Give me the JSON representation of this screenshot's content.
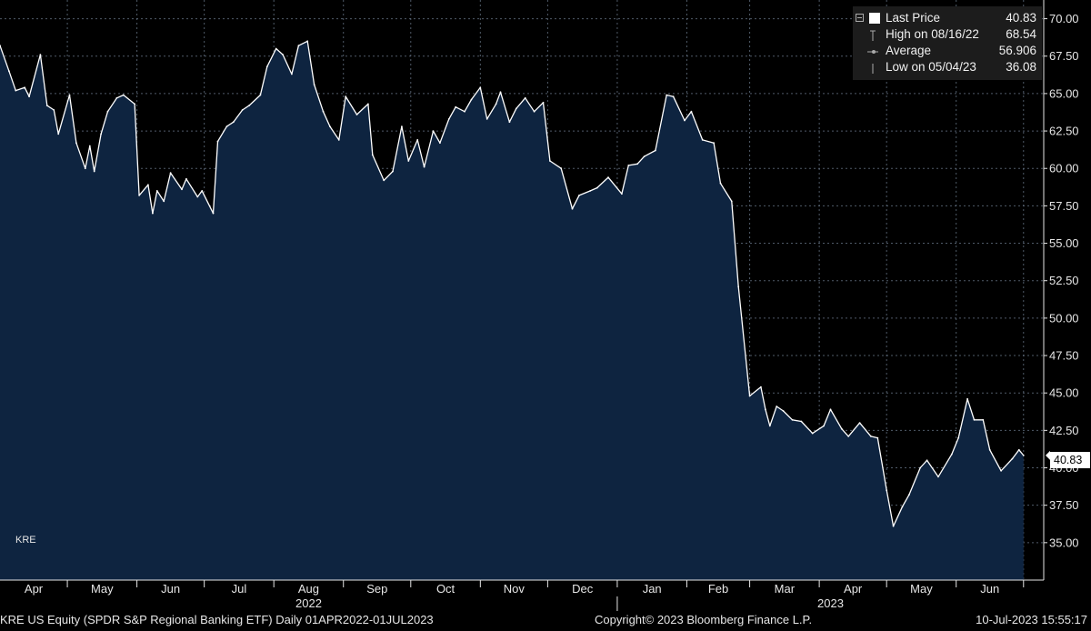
{
  "legend": {
    "rows": [
      {
        "label": "Last Price",
        "value": "40.83"
      },
      {
        "label": "High on 08/16/22",
        "value": "68.54"
      },
      {
        "label": "Average",
        "value": "56.906"
      },
      {
        "label": "Low on 05/04/23",
        "value": "36.08"
      }
    ]
  },
  "series_tag": "KRE",
  "last_badge": "40.83",
  "footer": {
    "left": "KRE US Equity (SPDR S&P Regional Banking ETF)  Daily 01APR2022-01JUL2023",
    "center": "Copyright© 2023 Bloomberg Finance L.P.",
    "right": "10-Jul-2023 15:55:17"
  },
  "colors": {
    "background": "#000000",
    "area_fill": "#0e2440",
    "line": "#ffffff",
    "grid": "#6b7a8c",
    "text": "#e6e6e6"
  },
  "chart_data": {
    "type": "area",
    "title": "",
    "xlabel": "",
    "ylabel": "",
    "ylim": [
      32.5,
      71.25
    ],
    "yticks": [
      "35.00",
      "37.50",
      "40.00",
      "42.50",
      "45.00",
      "47.50",
      "50.00",
      "52.50",
      "55.00",
      "57.50",
      "60.00",
      "62.50",
      "65.00",
      "67.50",
      "70.00"
    ],
    "month_labels": [
      "Apr",
      "May",
      "Jun",
      "Jul",
      "Aug",
      "Sep",
      "Oct",
      "Nov",
      "Dec",
      "Jan",
      "Feb",
      "Mar",
      "Apr",
      "May",
      "Jun"
    ],
    "year_labels": [
      "2022",
      "2023"
    ],
    "grid": true,
    "legend_position": "top-right",
    "series": [
      {
        "name": "Last Price",
        "x": [
          "2022-04-01",
          "2022-04-05",
          "2022-04-08",
          "2022-04-12",
          "2022-04-14",
          "2022-04-19",
          "2022-04-22",
          "2022-04-25",
          "2022-04-27",
          "2022-05-02",
          "2022-05-05",
          "2022-05-09",
          "2022-05-11",
          "2022-05-13",
          "2022-05-16",
          "2022-05-19",
          "2022-05-23",
          "2022-05-26",
          "2022-05-31",
          "2022-06-02",
          "2022-06-06",
          "2022-06-08",
          "2022-06-10",
          "2022-06-13",
          "2022-06-16",
          "2022-06-21",
          "2022-06-23",
          "2022-06-28",
          "2022-06-30",
          "2022-07-05",
          "2022-07-07",
          "2022-07-11",
          "2022-07-14",
          "2022-07-18",
          "2022-07-21",
          "2022-07-26",
          "2022-07-29",
          "2022-08-02",
          "2022-08-05",
          "2022-08-09",
          "2022-08-12",
          "2022-08-16",
          "2022-08-19",
          "2022-08-23",
          "2022-08-26",
          "2022-08-30",
          "2022-09-02",
          "2022-09-07",
          "2022-09-12",
          "2022-09-14",
          "2022-09-19",
          "2022-09-23",
          "2022-09-27",
          "2022-09-30",
          "2022-10-04",
          "2022-10-07",
          "2022-10-11",
          "2022-10-14",
          "2022-10-18",
          "2022-10-21",
          "2022-10-25",
          "2022-10-28",
          "2022-11-01",
          "2022-11-04",
          "2022-11-08",
          "2022-11-10",
          "2022-11-14",
          "2022-11-17",
          "2022-11-21",
          "2022-11-25",
          "2022-11-29",
          "2022-12-02",
          "2022-12-07",
          "2022-12-12",
          "2022-12-15",
          "2022-12-20",
          "2022-12-23",
          "2022-12-28",
          "2023-01-03",
          "2023-01-06",
          "2023-01-10",
          "2023-01-13",
          "2023-01-18",
          "2023-01-23",
          "2023-01-26",
          "2023-01-31",
          "2023-02-03",
          "2023-02-08",
          "2023-02-13",
          "2023-02-16",
          "2023-02-21",
          "2023-02-24",
          "2023-03-01",
          "2023-03-06",
          "2023-03-08",
          "2023-03-10",
          "2023-03-13",
          "2023-03-16",
          "2023-03-20",
          "2023-03-24",
          "2023-03-29",
          "2023-04-03",
          "2023-04-06",
          "2023-04-11",
          "2023-04-14",
          "2023-04-19",
          "2023-04-24",
          "2023-04-27",
          "2023-05-01",
          "2023-05-04",
          "2023-05-08",
          "2023-05-11",
          "2023-05-16",
          "2023-05-19",
          "2023-05-24",
          "2023-05-30",
          "2023-06-02",
          "2023-06-06",
          "2023-06-09",
          "2023-06-13",
          "2023-06-16",
          "2023-06-21",
          "2023-06-26",
          "2023-06-29",
          "2023-07-01"
        ],
        "y": [
          68.2,
          66.5,
          65.2,
          65.4,
          64.8,
          67.6,
          64.2,
          63.9,
          62.3,
          64.9,
          61.7,
          60.0,
          61.5,
          59.8,
          62.3,
          63.8,
          64.7,
          64.9,
          64.3,
          58.2,
          58.9,
          57.0,
          58.5,
          57.8,
          59.7,
          58.6,
          59.3,
          58.1,
          58.5,
          57.0,
          61.8,
          62.8,
          63.1,
          63.9,
          64.2,
          64.9,
          66.8,
          68.0,
          67.6,
          66.3,
          68.2,
          68.5,
          65.6,
          63.8,
          62.8,
          61.9,
          64.8,
          63.6,
          64.3,
          60.9,
          59.2,
          59.8,
          62.8,
          60.5,
          61.9,
          60.1,
          62.5,
          61.7,
          63.3,
          64.1,
          63.8,
          64.6,
          65.4,
          63.3,
          64.3,
          65.1,
          63.1,
          64.0,
          64.7,
          63.8,
          64.4,
          60.5,
          60.0,
          57.3,
          58.2,
          58.5,
          58.7,
          59.4,
          58.3,
          60.2,
          60.3,
          60.8,
          61.2,
          64.9,
          64.8,
          63.2,
          63.8,
          61.9,
          61.7,
          59.0,
          57.8,
          52.1,
          44.8,
          45.4,
          43.9,
          42.8,
          44.1,
          43.8,
          43.2,
          43.1,
          42.3,
          42.8,
          43.9,
          42.6,
          42.1,
          43.0,
          42.1,
          42.0,
          38.5,
          36.1,
          37.4,
          38.2,
          40.0,
          40.5,
          39.4,
          40.9,
          42.0,
          44.6,
          43.2,
          43.2,
          41.2,
          39.8,
          40.6,
          41.2,
          40.83
        ]
      }
    ],
    "stats": {
      "last": 40.83,
      "high": 68.54,
      "high_date": "08/16/22",
      "average": 56.906,
      "low": 36.08,
      "low_date": "05/04/23"
    }
  }
}
